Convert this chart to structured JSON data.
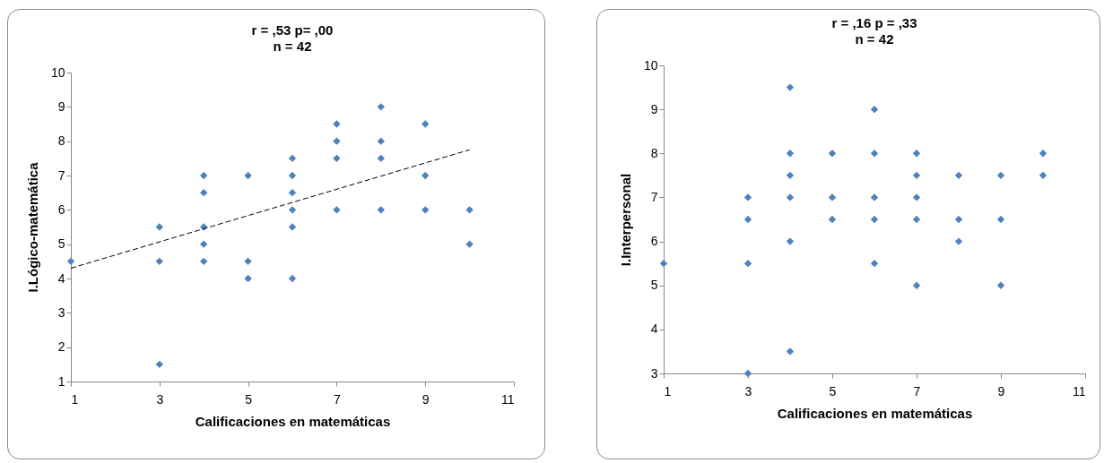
{
  "chart_data": [
    {
      "type": "scatter",
      "title": "r = ,53     p= ,00",
      "subtitle": "n = 42",
      "xlabel": "Calificaciones en matemáticas",
      "ylabel": "I.Lógico-matemática",
      "xlim": [
        1,
        11
      ],
      "xticks": [
        1,
        3,
        5,
        7,
        9,
        11
      ],
      "ylim": [
        1,
        10
      ],
      "yticks": [
        1,
        2,
        3,
        4,
        5,
        6,
        7,
        8,
        9,
        10
      ],
      "grid": false,
      "series": [
        {
          "marker": "diamond",
          "color": "#4f81bd",
          "x": [
            1,
            3,
            3,
            3,
            4,
            4,
            4,
            4,
            4,
            5,
            5,
            5,
            6,
            6,
            6,
            6,
            6,
            6,
            7,
            7,
            7,
            7,
            8,
            8,
            8,
            8,
            9,
            9,
            9,
            10,
            10
          ],
          "values": [
            4.5,
            5.5,
            4.5,
            1.5,
            7,
            6.5,
            5.5,
            5,
            4.5,
            7,
            4.5,
            4,
            7.5,
            7,
            6.5,
            6,
            5.5,
            4,
            8.5,
            8,
            7.5,
            6,
            9,
            8,
            7.5,
            6,
            8.5,
            7,
            6,
            6,
            5
          ]
        },
        {
          "type": "line",
          "color": "#000000",
          "line_style": "dashed",
          "x": [
            1,
            10
          ],
          "values": [
            4.3,
            7.75
          ]
        }
      ]
    },
    {
      "type": "scatter",
      "title": "r = ,16     p = ,33",
      "subtitle": "n = 42",
      "xlabel": "Calificaciones en matemáticas",
      "ylabel": "I.Interpersonal",
      "xlim": [
        1,
        11
      ],
      "xticks": [
        1,
        3,
        5,
        7,
        9,
        11
      ],
      "ylim": [
        3,
        10
      ],
      "yticks": [
        3,
        4,
        5,
        6,
        7,
        8,
        9,
        10
      ],
      "grid": false,
      "series": [
        {
          "marker": "diamond",
          "color": "#4f81bd",
          "x": [
            1,
            3,
            3,
            3,
            3,
            4,
            4,
            4,
            4,
            4,
            4,
            5,
            5,
            5,
            6,
            6,
            6,
            6,
            6,
            7,
            7,
            7,
            7,
            7,
            8,
            8,
            8,
            9,
            9,
            9,
            10,
            10
          ],
          "values": [
            5.5,
            7,
            6.5,
            5.5,
            3,
            9.5,
            8,
            7.5,
            7,
            6,
            3.5,
            8,
            7,
            6.5,
            9,
            8,
            7,
            6.5,
            5.5,
            8,
            7.5,
            7,
            6.5,
            5,
            7.5,
            6.5,
            6,
            7.5,
            6.5,
            5,
            8,
            7.5
          ]
        }
      ]
    }
  ]
}
